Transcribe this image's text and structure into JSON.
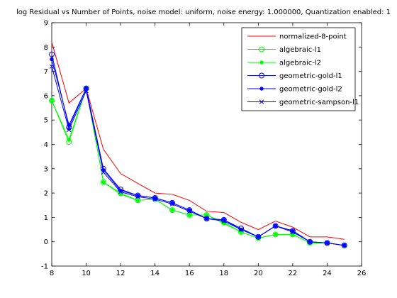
{
  "chart_data": {
    "type": "line",
    "title": "log Residual vs Number of Points, noise model: uniform, noise energy: 1.000000, Quantization enabled: 1",
    "xlabel": "",
    "ylabel": "",
    "xlim": [
      8,
      26
    ],
    "ylim": [
      -1,
      9
    ],
    "xticks": [
      8,
      10,
      12,
      14,
      16,
      18,
      20,
      22,
      24,
      26
    ],
    "yticks": [
      -1,
      0,
      1,
      2,
      3,
      4,
      5,
      6,
      7,
      8,
      9
    ],
    "x": [
      8,
      9,
      10,
      11,
      12,
      13,
      14,
      15,
      16,
      17,
      18,
      19,
      20,
      21,
      22,
      23,
      24,
      25
    ],
    "legend_position": "top-right",
    "grid": false,
    "series": [
      {
        "name": "normalized-8-point",
        "color": "#ff0000",
        "marker": "none",
        "values": [
          8.2,
          5.7,
          6.3,
          3.8,
          2.8,
          2.4,
          2.0,
          1.95,
          1.7,
          1.25,
          1.2,
          0.8,
          0.5,
          0.85,
          0.6,
          0.2,
          0.2,
          0.1
        ]
      },
      {
        "name": "algebraic-l1",
        "color": "#00ff00",
        "marker": "circle",
        "values": [
          5.8,
          4.1,
          6.3,
          2.45,
          2.0,
          1.7,
          1.75,
          1.3,
          1.1,
          1.1,
          0.8,
          0.4,
          0.15,
          0.3,
          0.3,
          -0.05,
          -0.05,
          -0.15
        ]
      },
      {
        "name": "algebraic-l2",
        "color": "#00ff00",
        "marker": "dot",
        "values": [
          5.8,
          4.2,
          6.3,
          2.45,
          1.95,
          1.7,
          1.75,
          1.3,
          1.1,
          1.1,
          0.75,
          0.4,
          0.15,
          0.3,
          0.3,
          -0.05,
          -0.05,
          -0.15
        ]
      },
      {
        "name": "geometric-gold-l1",
        "color": "#0000ff",
        "marker": "circle",
        "values": [
          7.7,
          4.7,
          6.3,
          3.0,
          2.15,
          1.9,
          1.8,
          1.6,
          1.3,
          0.95,
          0.9,
          0.55,
          0.2,
          0.65,
          0.45,
          0.0,
          -0.05,
          -0.15
        ]
      },
      {
        "name": "geometric-gold-l2",
        "color": "#0000ff",
        "marker": "dot",
        "values": [
          7.5,
          4.8,
          6.3,
          2.95,
          2.1,
          1.9,
          1.8,
          1.6,
          1.3,
          0.95,
          0.9,
          0.5,
          0.2,
          0.65,
          0.45,
          0.0,
          -0.05,
          -0.15
        ]
      },
      {
        "name": "geometric-sampson-l1",
        "color": "#0000ff",
        "marker": "x",
        "values": [
          7.2,
          4.6,
          6.2,
          2.85,
          2.05,
          1.85,
          1.75,
          1.55,
          1.25,
          0.95,
          0.85,
          0.5,
          0.2,
          0.65,
          0.4,
          0.0,
          -0.05,
          -0.15
        ]
      }
    ]
  }
}
